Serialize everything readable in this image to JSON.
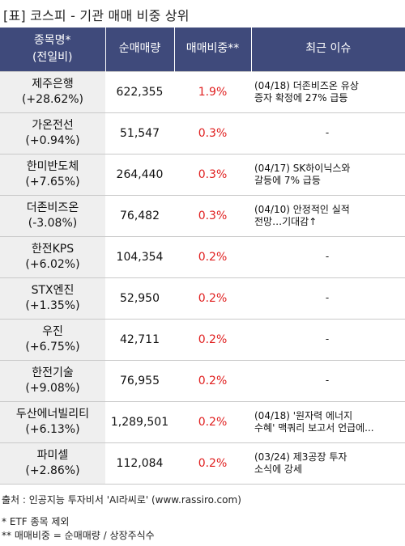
{
  "title": "[표] 코스피 - 기관 매매 비중 상위",
  "columns": {
    "name": "종목명*\n(전일비)",
    "volume": "순매매량",
    "ratio": "매매비중**",
    "issue": "최근 이슈"
  },
  "rows": [
    {
      "name": "제주은행",
      "change": "(+28.62%)",
      "volume": "622,355",
      "ratio": "1.9%",
      "issue": "(04/18) 더존비즈온 유상\n증자 확정에 27% 급등"
    },
    {
      "name": "가온전선",
      "change": "(+0.94%)",
      "volume": "51,547",
      "ratio": "0.3%",
      "issue": "-"
    },
    {
      "name": "한미반도체",
      "change": "(+7.65%)",
      "volume": "264,440",
      "ratio": "0.3%",
      "issue": "(04/17) SK하이닉스와\n갈등에 7% 급등"
    },
    {
      "name": "더존비즈온",
      "change": "(-3.08%)",
      "volume": "76,482",
      "ratio": "0.3%",
      "issue": "(04/10) 안정적인 실적\n전망…기대감↑"
    },
    {
      "name": "한전KPS",
      "change": "(+6.02%)",
      "volume": "104,354",
      "ratio": "0.2%",
      "issue": "-"
    },
    {
      "name": "STX엔진",
      "change": "(+1.35%)",
      "volume": "52,950",
      "ratio": "0.2%",
      "issue": "-"
    },
    {
      "name": "우진",
      "change": "(+6.75%)",
      "volume": "42,711",
      "ratio": "0.2%",
      "issue": "-"
    },
    {
      "name": "한전기술",
      "change": "(+9.08%)",
      "volume": "76,955",
      "ratio": "0.2%",
      "issue": "-"
    },
    {
      "name": "두산에너빌리티",
      "change": "(+6.13%)",
      "volume": "1,289,501",
      "ratio": "0.2%",
      "issue": "(04/18) '원자력 에너지\n수혜' 맥쿼리 보고서 언급에..."
    },
    {
      "name": "파미셀",
      "change": "(+2.86%)",
      "volume": "112,084",
      "ratio": "0.2%",
      "issue": "(03/24) 제3공장 투자\n소식에 강세"
    }
  ],
  "footer": {
    "source": "출처 : 인공지능 투자비서 'AI라씨로' (www.rassiro.com)",
    "note1": "* ETF 종목 제외",
    "note2": "** 매매비중 = 순매매량 / 상장주식수"
  },
  "colors": {
    "header_bg": "#3f4a7b",
    "name_cell_bg": "#efefef",
    "ratio_text": "#e02020"
  }
}
